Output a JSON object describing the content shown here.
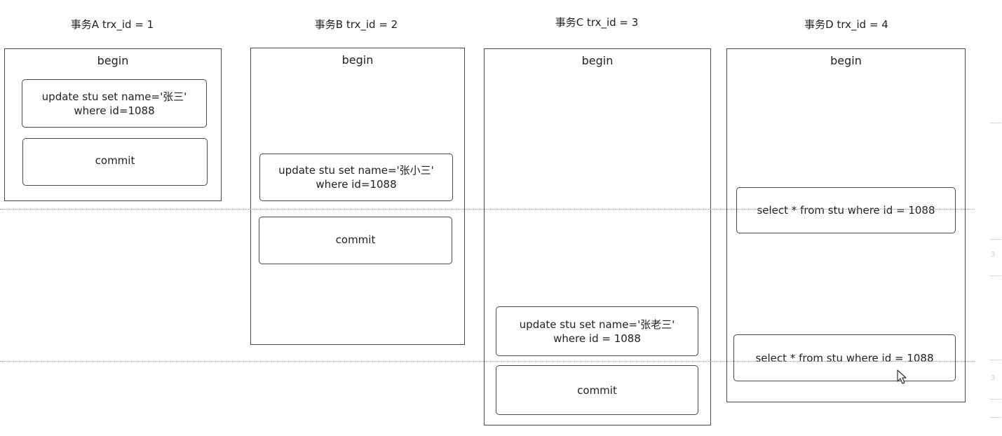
{
  "transactions": [
    {
      "title": "事务A trx_id = 1",
      "begin": "begin",
      "update": {
        "line1": "update stu set name='张三'",
        "line2": "where id=1088"
      },
      "commit": "commit"
    },
    {
      "title": "事务B trx_id = 2",
      "begin": "begin",
      "update": {
        "line1": "update stu set name='张小三'",
        "line2": "where id=1088"
      },
      "commit": "commit"
    },
    {
      "title": "事务C trx_id = 3",
      "begin": "begin",
      "update": {
        "line1": "update stu set name='张老三'",
        "line2": "where id = 1088"
      },
      "commit": "commit"
    },
    {
      "title": "事务D trx_id = 4",
      "begin": "begin",
      "select1": "select * from stu where id = 1088",
      "select2": "select * from stu where id = 1088"
    }
  ],
  "edge_glyphs": [
    "3",
    "3"
  ]
}
